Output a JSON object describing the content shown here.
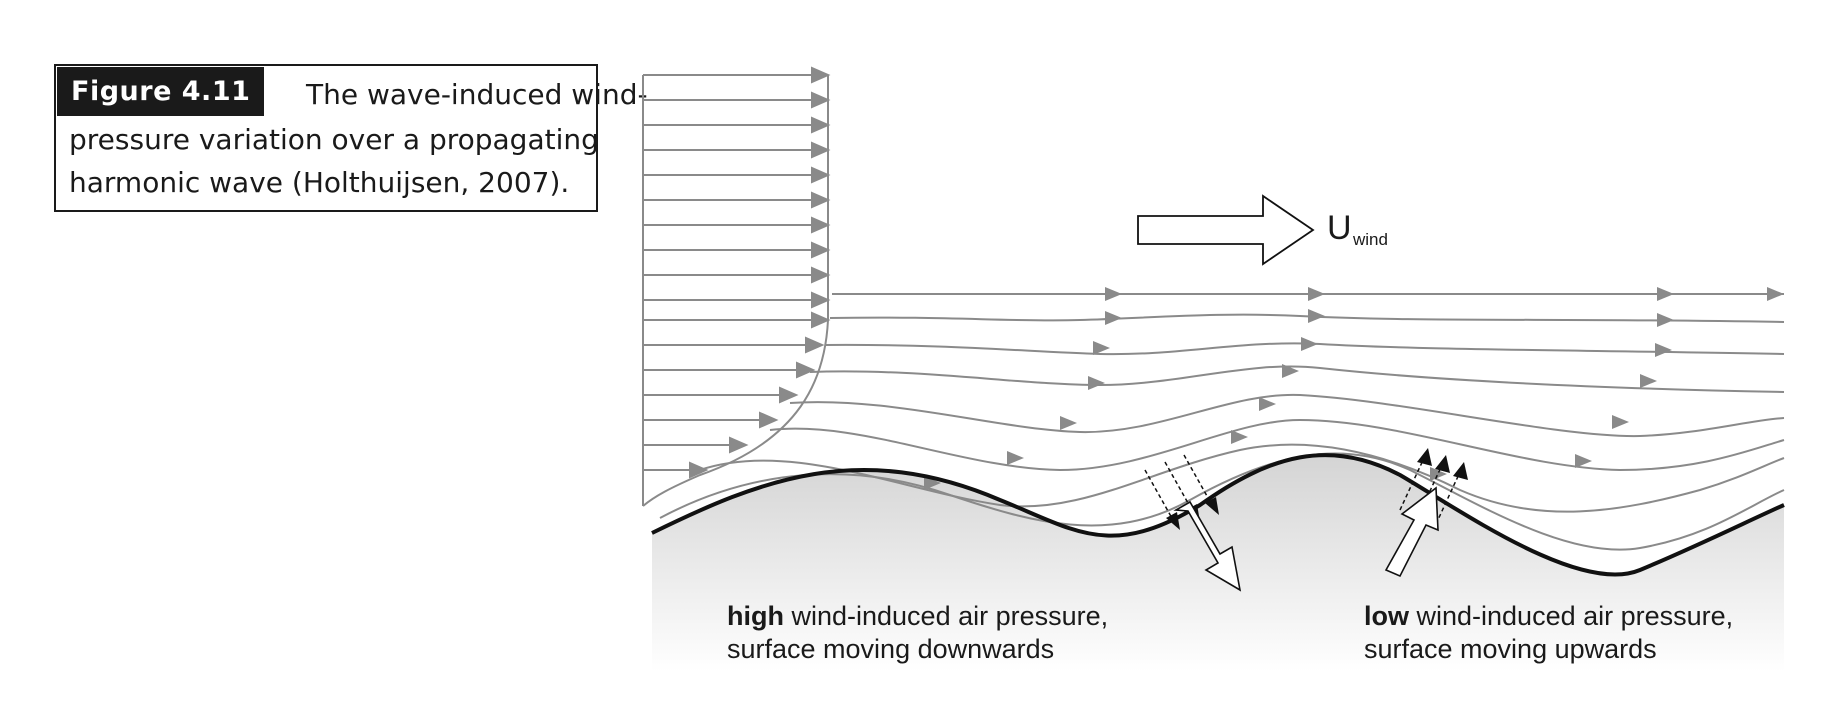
{
  "caption": {
    "figure_label": "Figure 4.11",
    "line1": "The wave-induced wind-",
    "line2": "pressure variation over a propagating",
    "line3": "harmonic wave (Holthuijsen, 2007)."
  },
  "wind_label": {
    "symbol": "U",
    "subscript": "wind"
  },
  "annotations": {
    "left_bold": "high",
    "left_rest": " wind-induced air pressure,",
    "left_line2": "surface moving downwards",
    "right_bold": "low",
    "right_rest": " wind-induced air pressure,",
    "right_line2": "surface moving upwards"
  },
  "colors": {
    "streamline": "#8a8a8a",
    "arrowhead": "#8a8a8a",
    "surface": "#111111",
    "water_top": "#d6d6d6",
    "water_bottom": "#ffffff",
    "text": "#1a1a1a"
  }
}
